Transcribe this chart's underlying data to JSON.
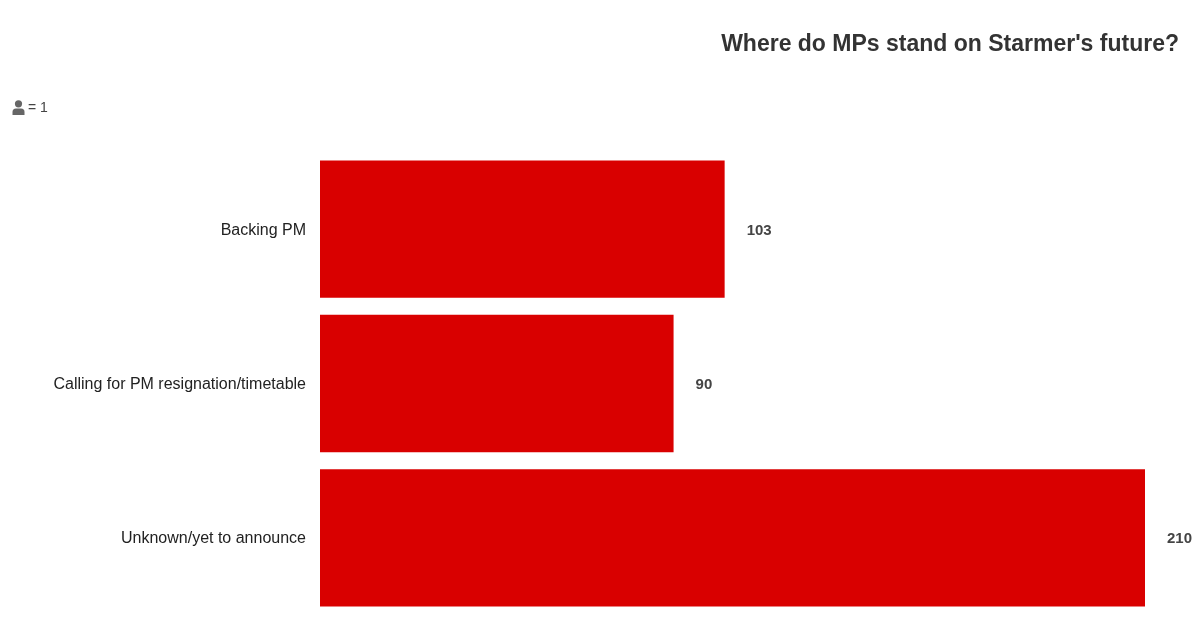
{
  "chart_data": {
    "type": "bar",
    "orientation": "horizontal",
    "title": "Where do MPs stand on Starmer's future?",
    "categories": [
      "Backing PM",
      "Calling for PM resignation/timetable",
      "Unknown/yet to announce"
    ],
    "values": [
      103,
      90,
      210
    ],
    "color": "#d90000",
    "data_labels": true,
    "tick_labels": "y",
    "annotations": [
      "= 1"
    ]
  }
}
